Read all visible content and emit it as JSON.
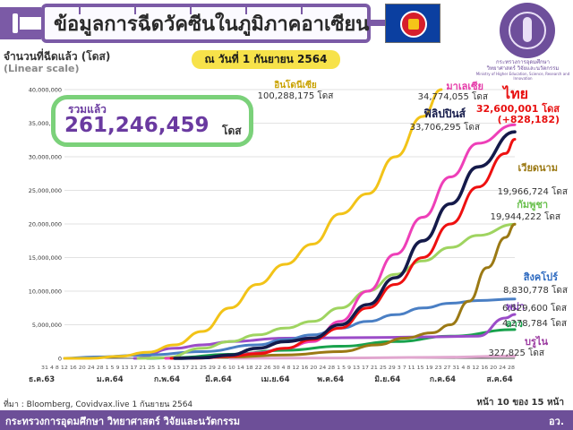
{
  "header": {
    "title": "ข้อมูลการฉีดวัคซีนในภูมิภาคอาเซียน",
    "date_label": "ณ วันที่ 1 กันยายน 2564"
  },
  "logo": {
    "caption_line1": "กระทรวงการอุดมศึกษา",
    "caption_line2": "วิทยาศาสตร์ วิจัยและนวัตกรรม",
    "caption_line3": "Ministry of Higher Education, Science, Research and Innovation"
  },
  "summary": {
    "label": "รวมแล้ว",
    "value": "261,246,459",
    "unit": "โดส"
  },
  "footer": {
    "source": "ที่มา : Bloomberg, Covidvax.live 1 กันยายน 2564",
    "page": "หน้า 10 ของ 15 หน้า",
    "ministry": "กระทรวงการอุดมศึกษา วิทยาศาสตร์ วิจัยและนวัตกรรม",
    "ministry_abbr": "อว."
  },
  "chart_data": {
    "type": "line",
    "ylabel": "จำนวนที่ฉีดแล้ว (โดส)",
    "yscale_note": "(Linear scale)",
    "ylim": [
      0,
      40000000
    ],
    "yticks": [
      0,
      5000000,
      10000000,
      15000000,
      20000000,
      25000000,
      30000000,
      35000000,
      40000000
    ],
    "ytick_labels": [
      "0",
      "5,000,000",
      "10,000,000",
      "15,000,000",
      "20,000,000",
      "25,000,000",
      "30,000,000",
      "35,000,000",
      "40,000,000"
    ],
    "x_start_day": 0,
    "x_end_day": 245,
    "x_month_labels": [
      {
        "label": "ธ.ค.63",
        "day": 0
      },
      {
        "label": "ม.ค.64",
        "day": 16
      },
      {
        "label": "ก.พ.64",
        "day": 47
      },
      {
        "label": "มี.ค.64",
        "day": 75
      },
      {
        "label": "เม.ย.64",
        "day": 106
      },
      {
        "label": "พ.ค.64",
        "day": 136
      },
      {
        "label": "มิ.ย.64",
        "day": 167
      },
      {
        "label": "ก.ค.64",
        "day": 197
      },
      {
        "label": "ส.ค.64",
        "day": 228
      }
    ],
    "x_day_ticks": "31 4 8 12 16 20 24 28 1 5 9 13 17 21 25 1 5 9 13 17 21 25 29 2 6 10 14 18 22 26 30 4 8 12 16 20 24 28 1 5 9 13 17 21 25 29 3 7 11 15 19 23 27 31 4 8 12 16 20 24 28",
    "series": [
      {
        "name": "อินโดนีเซีย",
        "value_label": "100,288,175 โดส",
        "color": "#f2c318",
        "points": [
          [
            0,
            0
          ],
          [
            14,
            0
          ],
          [
            30,
            300000
          ],
          [
            45,
            900000
          ],
          [
            60,
            2000000
          ],
          [
            75,
            4000000
          ],
          [
            90,
            7500000
          ],
          [
            105,
            11000000
          ],
          [
            120,
            14000000
          ],
          [
            135,
            17000000
          ],
          [
            150,
            21500000
          ],
          [
            165,
            24500000
          ],
          [
            180,
            30000000
          ],
          [
            195,
            36000000
          ],
          [
            205,
            40000000
          ]
        ]
      },
      {
        "name": "มาเลเซีย",
        "value_label": "34,774,055 โดส",
        "color": "#ee3fb8",
        "points": [
          [
            55,
            0
          ],
          [
            75,
            50000
          ],
          [
            90,
            300000
          ],
          [
            105,
            800000
          ],
          [
            120,
            1500000
          ],
          [
            135,
            2500000
          ],
          [
            150,
            5500000
          ],
          [
            165,
            10000000
          ],
          [
            180,
            15500000
          ],
          [
            195,
            21000000
          ],
          [
            210,
            27000000
          ],
          [
            225,
            32000000
          ],
          [
            245,
            34774055
          ]
        ]
      },
      {
        "name": "ไทย",
        "value_label": "32,600,001 โดส",
        "delta_label": "(+828,182)",
        "color": "#ee1010",
        "points": [
          [
            58,
            0
          ],
          [
            75,
            50000
          ],
          [
            90,
            300000
          ],
          [
            105,
            700000
          ],
          [
            120,
            1500000
          ],
          [
            135,
            2800000
          ],
          [
            150,
            4500000
          ],
          [
            165,
            7500000
          ],
          [
            180,
            11000000
          ],
          [
            195,
            15000000
          ],
          [
            210,
            20000000
          ],
          [
            225,
            25500000
          ],
          [
            240,
            30500000
          ],
          [
            245,
            32600001
          ]
        ]
      },
      {
        "name": "ฟิลิปปินส์",
        "value_label": "33,706,295 โดส",
        "color": "#141a4a",
        "points": [
          [
            60,
            0
          ],
          [
            75,
            100000
          ],
          [
            90,
            500000
          ],
          [
            105,
            1500000
          ],
          [
            120,
            2500000
          ],
          [
            135,
            3000000
          ],
          [
            150,
            5000000
          ],
          [
            165,
            8000000
          ],
          [
            180,
            12000000
          ],
          [
            195,
            17500000
          ],
          [
            210,
            23000000
          ],
          [
            225,
            28500000
          ],
          [
            245,
            33706295
          ]
        ]
      },
      {
        "name": "เวียดนาม",
        "value_label": "19,966,724 โดส",
        "color": "#9b7914",
        "points": [
          [
            66,
            0
          ],
          [
            90,
            200000
          ],
          [
            120,
            500000
          ],
          [
            150,
            1000000
          ],
          [
            170,
            2000000
          ],
          [
            185,
            3000000
          ],
          [
            200,
            3800000
          ],
          [
            210,
            5000000
          ],
          [
            220,
            8500000
          ],
          [
            230,
            13500000
          ],
          [
            240,
            18000000
          ],
          [
            245,
            19966724
          ]
        ]
      },
      {
        "name": "กัมพูชา",
        "value_label": "19,944,222 โดส",
        "color": "#9fd460",
        "points": [
          [
            40,
            0
          ],
          [
            55,
            100000
          ],
          [
            75,
            1500000
          ],
          [
            90,
            2500000
          ],
          [
            105,
            3500000
          ],
          [
            120,
            4500000
          ],
          [
            135,
            5500000
          ],
          [
            150,
            7500000
          ],
          [
            165,
            10000000
          ],
          [
            180,
            12500000
          ],
          [
            195,
            14500000
          ],
          [
            210,
            16500000
          ],
          [
            225,
            18300000
          ],
          [
            245,
            19944222
          ]
        ]
      },
      {
        "name": "สิงคโปร์",
        "value_label": "8,830,778 โดส",
        "color": "#4a7fc4",
        "points": [
          [
            0,
            0
          ],
          [
            16,
            200000
          ],
          [
            45,
            500000
          ],
          [
            75,
            1000000
          ],
          [
            105,
            2000000
          ],
          [
            120,
            2800000
          ],
          [
            135,
            3500000
          ],
          [
            150,
            4500000
          ],
          [
            165,
            5500000
          ],
          [
            180,
            6500000
          ],
          [
            195,
            7500000
          ],
          [
            210,
            8200000
          ],
          [
            225,
            8600000
          ],
          [
            245,
            8830778
          ]
        ]
      },
      {
        "name": "พม่า",
        "value_label": "6,529,600 โดส",
        "color": "#9b4cc8",
        "points": [
          [
            38,
            0
          ],
          [
            60,
            1500000
          ],
          [
            75,
            2000000
          ],
          [
            90,
            2500000
          ],
          [
            120,
            3000000
          ],
          [
            170,
            3100000
          ],
          [
            200,
            3200000
          ],
          [
            225,
            3300000
          ],
          [
            240,
            6000000
          ],
          [
            245,
            6529600
          ]
        ]
      },
      {
        "name": "ลาว",
        "value_label": "4,278,784 โดส",
        "color": "#18a24c",
        "points": [
          [
            45,
            0
          ],
          [
            60,
            100000
          ],
          [
            90,
            600000
          ],
          [
            120,
            1200000
          ],
          [
            150,
            1800000
          ],
          [
            180,
            2500000
          ],
          [
            210,
            3300000
          ],
          [
            245,
            4278784
          ]
        ]
      },
      {
        "name": "บรูไน",
        "value_label": "327,825 โดส",
        "color": "#e1a7cf",
        "points": [
          [
            90,
            0
          ],
          [
            150,
            50000
          ],
          [
            200,
            150000
          ],
          [
            245,
            327825
          ]
        ]
      }
    ]
  }
}
